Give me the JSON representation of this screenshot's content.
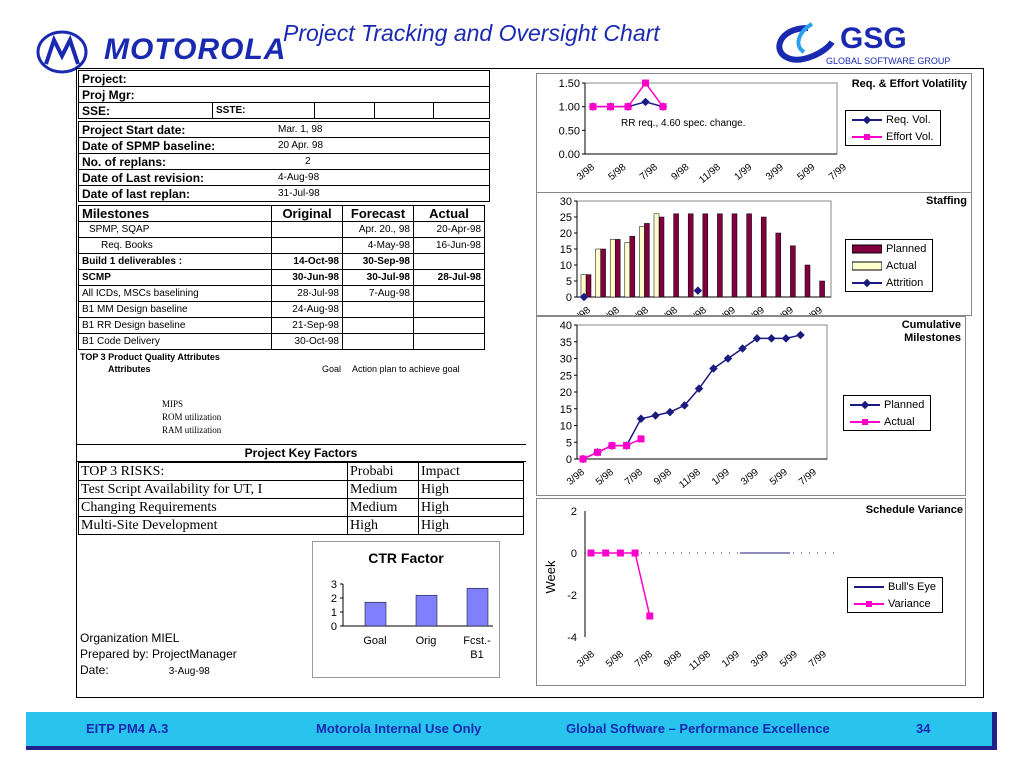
{
  "header": {
    "title": "Project Tracking and Oversight Chart",
    "motorola": "MOTOROLA",
    "gsg": "GSG",
    "gsg_sub": "GLOBAL SOFTWARE GROUP",
    "brand_color": "#1a2ab0"
  },
  "project": {
    "project_label": "Project:",
    "mgr_label": "Proj Mgr:",
    "sse_label": "SSE:",
    "sste_label": "SSTE:",
    "start_label": "Project Start date:",
    "start_value": "Mar. 1, 98",
    "spmp_label": "Date of SPMP baseline:",
    "spmp_value": "20 Apr. 98",
    "replans_label": "No. of replans:",
    "replans_value": "2",
    "lastrev_label": "Date of Last revision:",
    "lastrev_value": "4-Aug-98",
    "lastreplan_label": "Date of last replan:",
    "lastreplan_value": "31-Jul-98"
  },
  "milestones": {
    "headers": [
      "Milestones",
      "Original",
      "Forecast",
      "Actual"
    ],
    "rows": [
      {
        "name": "SPMP, SQAP",
        "original": "",
        "forecast": "Apr. 20., 98",
        "actual": "20-Apr-98"
      },
      {
        "name": "Req. Books",
        "original": "",
        "forecast": "4-May-98",
        "actual": "16-Jun-98"
      },
      {
        "name": "Build 1 deliverables :",
        "original": "14-Oct-98",
        "forecast": "30-Sep-98",
        "actual": ""
      },
      {
        "name": "SCMP",
        "original": "30-Jun-98",
        "forecast": "30-Jul-98",
        "actual": "28-Jul-98"
      },
      {
        "name": "All ICDs, MSCs baselining",
        "original": "28-Jul-98",
        "forecast": "7-Aug-98",
        "actual": ""
      },
      {
        "name": "B1 MM Design baseline",
        "original": "24-Aug-98",
        "forecast": "",
        "actual": ""
      },
      {
        "name": "B1 RR Design baseline",
        "original": "21-Sep-98",
        "forecast": "",
        "actual": ""
      },
      {
        "name": "B1 Code Delivery",
        "original": "30-Oct-98",
        "forecast": "",
        "actual": ""
      }
    ]
  },
  "quality": {
    "title": "TOP 3 Product Quality Attributes",
    "attributes_label": "Attributes",
    "goal_label": "Goal",
    "action_label": "Action plan to achieve goal",
    "items": [
      "MIPS",
      "ROM utilization",
      "RAM utilization"
    ]
  },
  "risks": {
    "title": "Project Key Factors",
    "headers": [
      "TOP 3 RISKS:",
      "Probabi",
      "Impact"
    ],
    "rows": [
      [
        "Test Script Availability for UT, I",
        "Medium",
        "High"
      ],
      [
        "Changing Requirements",
        "Medium",
        "High"
      ],
      [
        "Multi-Site Development",
        "High",
        "High"
      ]
    ]
  },
  "org": {
    "organization": "Organization MIEL",
    "prepared": "Prepared by: ProjectManager",
    "date_label": "Date:",
    "date_value": "3-Aug-98"
  },
  "footer": {
    "left": "EITP PM4 A.3",
    "center": "Motorola Internal Use Only",
    "right": "Global Software – Performance Excellence",
    "page": "34"
  },
  "chart_data": [
    {
      "id": "volatility",
      "type": "line",
      "title": "Req. & Effort Volatility",
      "annotation": "RR req., 4.60 spec. change.",
      "x_ticks": [
        "3/98",
        "5/98",
        "7/98",
        "9/98",
        "11/98",
        "1/99",
        "3/99",
        "5/99",
        "7/99"
      ],
      "ylim": [
        0,
        1.5
      ],
      "y_ticks": [
        "0.00",
        "0.50",
        "1.00",
        "1.50"
      ],
      "series": [
        {
          "name": "Req. Vol.",
          "color": "#1a1a80",
          "marker": "diamond",
          "values": [
            1.0,
            1.0,
            1.0,
            1.1,
            1.0
          ]
        },
        {
          "name": "Effort Vol.",
          "color": "#ff00cc",
          "marker": "square",
          "values": [
            1.0,
            1.0,
            1.0,
            1.5,
            1.0
          ]
        }
      ]
    },
    {
      "id": "staffing",
      "type": "bar",
      "title": "Staffing",
      "ylim": [
        0,
        30
      ],
      "y_ticks": [
        "0",
        "5",
        "10",
        "15",
        "20",
        "25",
        "30"
      ],
      "series": [
        {
          "name": "Planned",
          "color": "#800040",
          "values": [
            7,
            15,
            18,
            19,
            23,
            25,
            26,
            26,
            26,
            26,
            26,
            26,
            25,
            20,
            16,
            10,
            5
          ]
        },
        {
          "name": "Actual",
          "color": "#ffffcc",
          "values": [
            7,
            15,
            18,
            17,
            22,
            26
          ]
        },
        {
          "name": "Attrition",
          "color": "#1a1a80",
          "values": [
            0,
            null,
            null,
            2
          ]
        }
      ]
    },
    {
      "id": "cumulative",
      "type": "line",
      "title": "Cumulative Milestones",
      "x_ticks": [
        "3/98",
        "5/98",
        "7/98",
        "9/98",
        "11/98",
        "1/99",
        "3/99",
        "5/99",
        "7/99"
      ],
      "ylim": [
        0,
        40
      ],
      "y_ticks": [
        "0",
        "5",
        "10",
        "15",
        "20",
        "25",
        "30",
        "35",
        "40"
      ],
      "series": [
        {
          "name": "Planned",
          "color": "#1a1a80",
          "marker": "diamond",
          "values": [
            0,
            2,
            4,
            4,
            12,
            13,
            14,
            16,
            21,
            27,
            30,
            33,
            36,
            36,
            36,
            37
          ]
        },
        {
          "name": "Actual",
          "color": "#ff00cc",
          "marker": "square",
          "values": [
            0,
            2,
            4,
            4,
            6
          ]
        }
      ]
    },
    {
      "id": "variance",
      "type": "line",
      "title": "Schedule Variance",
      "ylabel": "Week",
      "x_ticks": [
        "3/98",
        "5/98",
        "7/98",
        "9/98",
        "11/98",
        "1/99",
        "3/99",
        "5/99",
        "7/99"
      ],
      "ylim": [
        -4,
        2
      ],
      "y_ticks": [
        "-4",
        "-2",
        "0",
        "2"
      ],
      "series": [
        {
          "name": "Bull's Eye",
          "color": "#1a1a80",
          "values": [
            0,
            0,
            0,
            0,
            0,
            0,
            0,
            0,
            0,
            0,
            0,
            0,
            0,
            0,
            0,
            0,
            0
          ]
        },
        {
          "name": "Variance",
          "color": "#ff00cc",
          "marker": "square",
          "values": [
            0,
            0,
            0,
            0,
            -3
          ]
        }
      ]
    },
    {
      "id": "ctr",
      "type": "bar",
      "title": "CTR Factor",
      "categories": [
        "Goal",
        "Orig",
        "Fcst.-B1"
      ],
      "values": [
        1.7,
        2.2,
        2.7
      ],
      "ylim": [
        0,
        3
      ],
      "y_ticks": [
        "0",
        "1",
        "2",
        "3"
      ],
      "color": "#8080ff"
    }
  ]
}
